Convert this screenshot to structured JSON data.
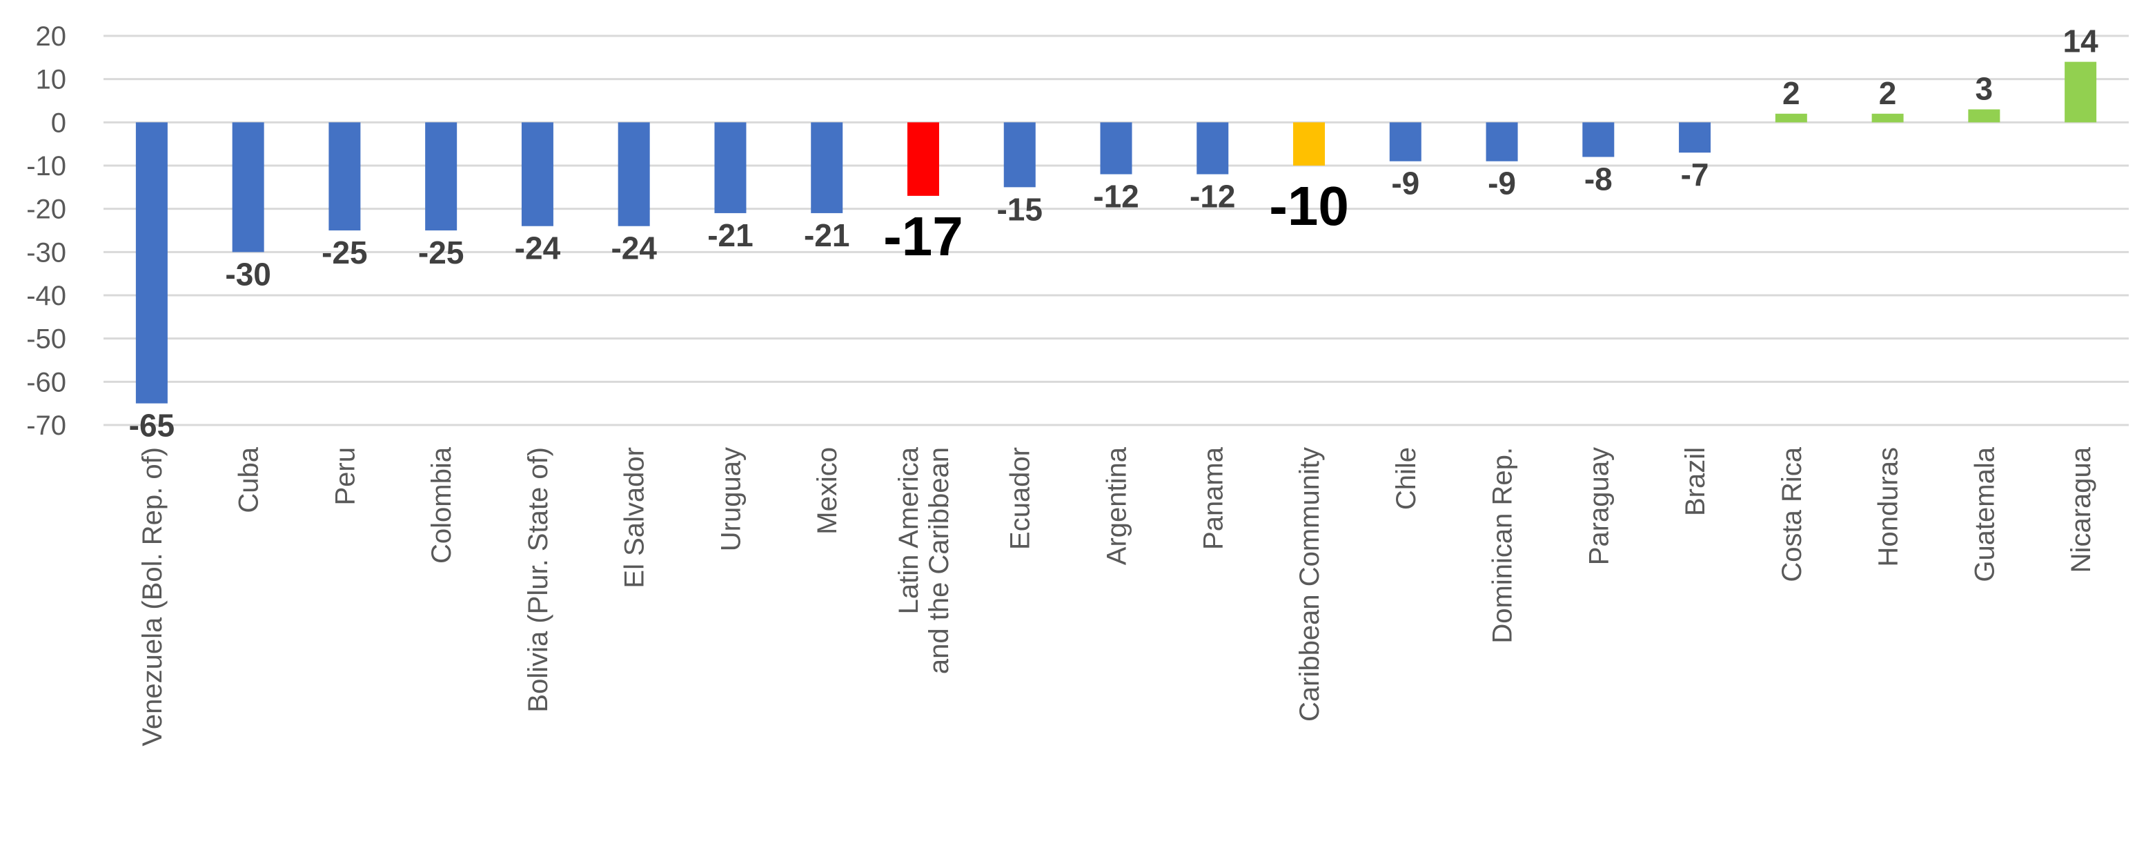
{
  "chart_data": {
    "type": "bar",
    "categories": [
      "Venezuela (Bol. Rep. of)",
      "Cuba",
      "Peru",
      "Colombia",
      "Bolivia (Plur. State of)",
      "El Salvador",
      "Uruguay",
      "Mexico",
      "Latin America and the Caribbean",
      "Ecuador",
      "Argentina",
      "Panama",
      "Caribbean Community",
      "Chile",
      "Dominican Rep.",
      "Paraguay",
      "Brazil",
      "Costa Rica",
      "Honduras",
      "Guatemala",
      "Nicaragua"
    ],
    "values": [
      -65,
      -30,
      -25,
      -25,
      -24,
      -24,
      -21,
      -21,
      -17,
      -15,
      -12,
      -12,
      -10,
      -9,
      -9,
      -8,
      -7,
      2,
      2,
      3,
      14
    ],
    "data_labels": [
      "-65",
      "-30",
      "-25",
      "-25",
      "-24",
      "-24",
      "-21",
      "-21",
      "-17",
      "-15",
      "-12",
      "-12",
      "-10",
      "-9",
      "-9",
      "-8",
      "-7",
      "2",
      "2",
      "3",
      "14"
    ],
    "bar_colors": [
      "#4472c4",
      "#4472c4",
      "#4472c4",
      "#4472c4",
      "#4472c4",
      "#4472c4",
      "#4472c4",
      "#4472c4",
      "#ff0000",
      "#4472c4",
      "#4472c4",
      "#4472c4",
      "#ffc000",
      "#4472c4",
      "#4472c4",
      "#4472c4",
      "#4472c4",
      "#92d050",
      "#92d050",
      "#92d050",
      "#92d050"
    ],
    "highlighted": [
      "Latin America and the Caribbean",
      "Caribbean Community"
    ],
    "ylim": [
      -70,
      20
    ],
    "yticks": [
      20,
      10,
      0,
      -10,
      -20,
      -30,
      -40,
      -50,
      -60,
      -70
    ],
    "grid": true,
    "legend": "none",
    "title": "",
    "xlabel": "",
    "ylabel": ""
  }
}
